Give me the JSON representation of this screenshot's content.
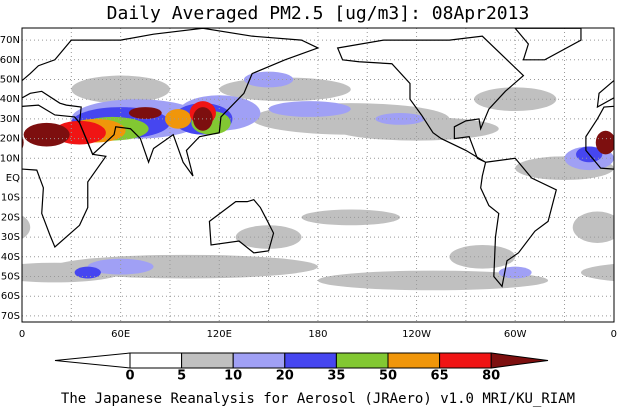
{
  "header": {
    "title": "Daily Averaged PM2.5 [ug/m3]: 08Apr2013"
  },
  "map": {
    "lat_labels": [
      "70N",
      "60N",
      "50N",
      "40N",
      "30N",
      "20N",
      "10N",
      "EQ",
      "10S",
      "20S",
      "30S",
      "40S",
      "50S",
      "60S",
      "70S"
    ],
    "lon_labels": [
      "0",
      "60E",
      "120E",
      "180",
      "120W",
      "60W",
      "0"
    ]
  },
  "colorbar": {
    "labels": [
      "0",
      "5",
      "10",
      "20",
      "35",
      "50",
      "65",
      "80"
    ],
    "colors": [
      "#ffffff",
      "#ffffff",
      "#c0c0c0",
      "#a0a0f5",
      "#4646f0",
      "#82c832",
      "#f0960a",
      "#f01414",
      "#7d0f0f"
    ]
  },
  "footer": {
    "text": "The Japanese Reanalysis for Aerosol (JRAero) v1.0 MRI/KU_RIAM"
  }
}
